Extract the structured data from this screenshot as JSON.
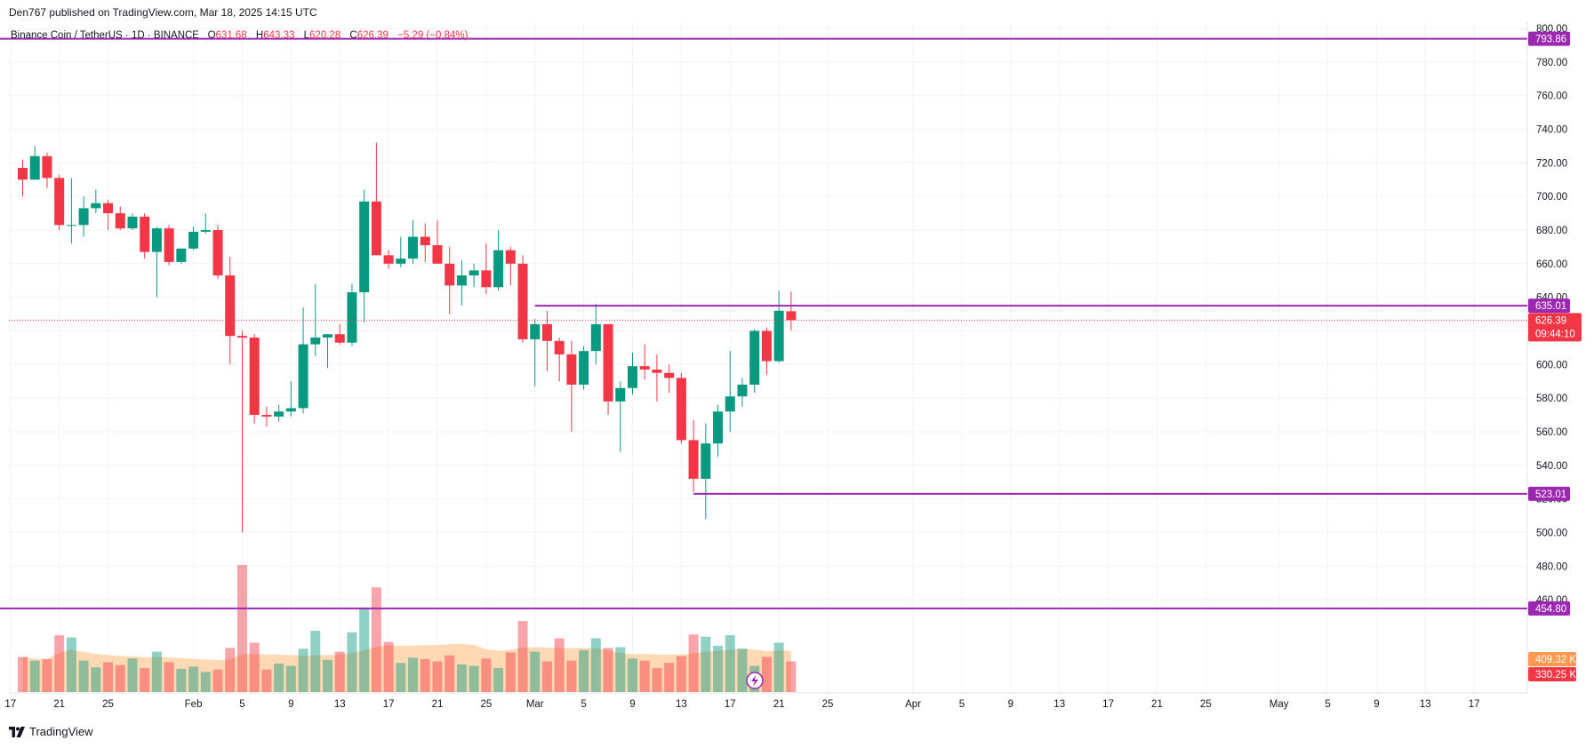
{
  "header": {
    "published": "Den767 published on TradingView.com, Mar 18, 2025 14:15 UTC"
  },
  "legend": {
    "symbol": "Binance Coin / TetherUS · 1D · BINANCE",
    "o_label": "O",
    "o": "631.68",
    "h_label": "H",
    "h": "643.33",
    "l_label": "L",
    "l": "620.28",
    "c_label": "C",
    "c": "626.39",
    "change": "−5.29 (−0.84%)"
  },
  "footer": {
    "brand": "TradingView"
  },
  "colors": {
    "up": "#089981",
    "down": "#f23645",
    "level": "#9c27b0",
    "grid": "#f0f3fa",
    "axis_text": "#131722"
  },
  "chart_data": {
    "type": "candlestick",
    "symbol": "Binance Coin / TetherUS",
    "interval": "1D",
    "exchange": "BINANCE",
    "ylim": [
      450,
      800
    ],
    "y_ticks": [
      "460.00",
      "480.00",
      "500.00",
      "520.00",
      "540.00",
      "560.00",
      "580.00",
      "600.00",
      "620.00",
      "640.00",
      "660.00",
      "680.00",
      "700.00",
      "720.00",
      "740.00",
      "760.00",
      "780.00",
      "800.00"
    ],
    "x_ticks": [
      {
        "day": -1,
        "label": "17"
      },
      {
        "day": 3,
        "label": "21"
      },
      {
        "day": 7,
        "label": "25"
      },
      {
        "day": 14,
        "label": "Feb"
      },
      {
        "day": 18,
        "label": "5"
      },
      {
        "day": 22,
        "label": "9"
      },
      {
        "day": 26,
        "label": "13"
      },
      {
        "day": 30,
        "label": "17"
      },
      {
        "day": 34,
        "label": "21"
      },
      {
        "day": 38,
        "label": "25"
      },
      {
        "day": 42,
        "label": "Mar"
      },
      {
        "day": 46,
        "label": "5"
      },
      {
        "day": 50,
        "label": "9"
      },
      {
        "day": 54,
        "label": "13"
      },
      {
        "day": 58,
        "label": "17"
      },
      {
        "day": 62,
        "label": "21"
      },
      {
        "day": 66,
        "label": "25"
      },
      {
        "day": 73,
        "label": "Apr"
      },
      {
        "day": 77,
        "label": "5"
      },
      {
        "day": 81,
        "label": "9"
      },
      {
        "day": 85,
        "label": "13"
      },
      {
        "day": 89,
        "label": "17"
      },
      {
        "day": 93,
        "label": "21"
      },
      {
        "day": 97,
        "label": "25"
      },
      {
        "day": 103,
        "label": "May"
      },
      {
        "day": 107,
        "label": "5"
      },
      {
        "day": 111,
        "label": "9"
      },
      {
        "day": 115,
        "label": "13"
      },
      {
        "day": 119,
        "label": "17"
      }
    ],
    "candles": [
      {
        "o": 717,
        "h": 722,
        "l": 700,
        "c": 710
      },
      {
        "o": 710,
        "h": 730,
        "l": 710,
        "c": 724
      },
      {
        "o": 724,
        "h": 726,
        "l": 705,
        "c": 711
      },
      {
        "o": 711,
        "h": 713,
        "l": 680,
        "c": 683
      },
      {
        "o": 683,
        "h": 711,
        "l": 672,
        "c": 683
      },
      {
        "o": 683,
        "h": 700,
        "l": 676,
        "c": 693
      },
      {
        "o": 693,
        "h": 704,
        "l": 690,
        "c": 696
      },
      {
        "o": 696,
        "h": 698,
        "l": 680,
        "c": 690
      },
      {
        "o": 690,
        "h": 694,
        "l": 680,
        "c": 681
      },
      {
        "o": 681,
        "h": 690,
        "l": 680,
        "c": 688
      },
      {
        "o": 688,
        "h": 690,
        "l": 663,
        "c": 667
      },
      {
        "o": 667,
        "h": 682,
        "l": 640,
        "c": 681
      },
      {
        "o": 681,
        "h": 683,
        "l": 659,
        "c": 661
      },
      {
        "o": 661,
        "h": 669,
        "l": 660,
        "c": 669
      },
      {
        "o": 669,
        "h": 682,
        "l": 668,
        "c": 679
      },
      {
        "o": 679,
        "h": 690,
        "l": 678,
        "c": 680
      },
      {
        "o": 680,
        "h": 683,
        "l": 651,
        "c": 653
      },
      {
        "o": 653,
        "h": 664,
        "l": 600,
        "c": 617
      },
      {
        "o": 617,
        "h": 620,
        "l": 500,
        "c": 616
      },
      {
        "o": 616,
        "h": 618,
        "l": 565,
        "c": 570
      },
      {
        "o": 570,
        "h": 575,
        "l": 563,
        "c": 569
      },
      {
        "o": 569,
        "h": 576,
        "l": 566,
        "c": 572
      },
      {
        "o": 572,
        "h": 590,
        "l": 569,
        "c": 574
      },
      {
        "o": 574,
        "h": 634,
        "l": 571,
        "c": 612
      },
      {
        "o": 612,
        "h": 648,
        "l": 605,
        "c": 616
      },
      {
        "o": 616,
        "h": 618,
        "l": 598,
        "c": 618
      },
      {
        "o": 618,
        "h": 624,
        "l": 612,
        "c": 613
      },
      {
        "o": 613,
        "h": 648,
        "l": 611,
        "c": 643
      },
      {
        "o": 643,
        "h": 704,
        "l": 625,
        "c": 697
      },
      {
        "o": 697,
        "h": 732,
        "l": 665,
        "c": 665
      },
      {
        "o": 665,
        "h": 668,
        "l": 657,
        "c": 660
      },
      {
        "o": 660,
        "h": 676,
        "l": 658,
        "c": 663
      },
      {
        "o": 663,
        "h": 686,
        "l": 660,
        "c": 676
      },
      {
        "o": 676,
        "h": 684,
        "l": 661,
        "c": 671
      },
      {
        "o": 671,
        "h": 686,
        "l": 661,
        "c": 660
      },
      {
        "o": 660,
        "h": 670,
        "l": 630,
        "c": 647
      },
      {
        "o": 647,
        "h": 662,
        "l": 635,
        "c": 653
      },
      {
        "o": 653,
        "h": 660,
        "l": 646,
        "c": 656
      },
      {
        "o": 656,
        "h": 672,
        "l": 642,
        "c": 646
      },
      {
        "o": 646,
        "h": 680,
        "l": 644,
        "c": 668
      },
      {
        "o": 668,
        "h": 670,
        "l": 647,
        "c": 660
      },
      {
        "o": 660,
        "h": 665,
        "l": 613,
        "c": 615
      },
      {
        "o": 615,
        "h": 627,
        "l": 587,
        "c": 624
      },
      {
        "o": 624,
        "h": 632,
        "l": 596,
        "c": 614
      },
      {
        "o": 614,
        "h": 616,
        "l": 590,
        "c": 606
      },
      {
        "o": 606,
        "h": 614,
        "l": 560,
        "c": 588
      },
      {
        "o": 588,
        "h": 611,
        "l": 585,
        "c": 608
      },
      {
        "o": 608,
        "h": 636,
        "l": 600,
        "c": 624
      },
      {
        "o": 624,
        "h": 624,
        "l": 570,
        "c": 578
      },
      {
        "o": 578,
        "h": 590,
        "l": 548,
        "c": 586
      },
      {
        "o": 586,
        "h": 607,
        "l": 582,
        "c": 599
      },
      {
        "o": 599,
        "h": 612,
        "l": 591,
        "c": 597
      },
      {
        "o": 597,
        "h": 606,
        "l": 578,
        "c": 595
      },
      {
        "o": 595,
        "h": 600,
        "l": 583,
        "c": 592
      },
      {
        "o": 592,
        "h": 595,
        "l": 553,
        "c": 555
      },
      {
        "o": 555,
        "h": 567,
        "l": 524,
        "c": 532
      },
      {
        "o": 532,
        "h": 565,
        "l": 508,
        "c": 553
      },
      {
        "o": 553,
        "h": 576,
        "l": 545,
        "c": 572
      },
      {
        "o": 572,
        "h": 608,
        "l": 560,
        "c": 581
      },
      {
        "o": 581,
        "h": 592,
        "l": 575,
        "c": 588
      },
      {
        "o": 588,
        "h": 621,
        "l": 583,
        "c": 620
      },
      {
        "o": 620,
        "h": 622,
        "l": 594,
        "c": 602
      },
      {
        "o": 602,
        "h": 644,
        "l": 601,
        "c": 632
      },
      {
        "o": 631.68,
        "h": 643.33,
        "l": 620.28,
        "c": 626.39
      }
    ],
    "volumes_k": [
      470,
      420,
      440,
      760,
      730,
      420,
      330,
      400,
      360,
      450,
      320,
      540,
      400,
      310,
      340,
      270,
      300,
      590,
      1700,
      660,
      300,
      380,
      350,
      580,
      820,
      430,
      540,
      800,
      1110,
      1400,
      670,
      390,
      460,
      440,
      410,
      490,
      370,
      350,
      450,
      320,
      530,
      950,
      540,
      410,
      720,
      420,
      560,
      720,
      590,
      600,
      450,
      420,
      320,
      390,
      480,
      770,
      740,
      620,
      760,
      580,
      350,
      470,
      660,
      409.32
    ],
    "volume_ma_k": 330.25,
    "last_price": "626.39",
    "countdown": "09:44:10",
    "last_volume": "409.32 K",
    "volume_ma": "330.25 K",
    "levels": [
      {
        "price": 793.86,
        "label": "793.86",
        "from_day": -2
      },
      {
        "price": 635.01,
        "label": "635.01",
        "from_day": 42
      },
      {
        "price": 523.01,
        "label": "523.01",
        "from_day": 55
      },
      {
        "price": 454.8,
        "label": "454.80",
        "from_day": -2
      }
    ]
  }
}
